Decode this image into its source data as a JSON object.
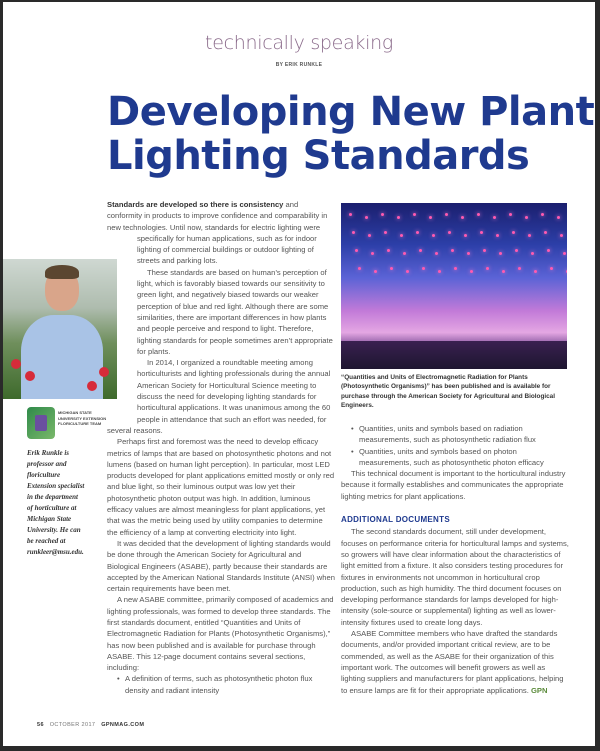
{
  "header": {
    "kicker": "technically speaking",
    "byline": "BY ERIK RUNKLE"
  },
  "title": {
    "line1": "Developing New Plant",
    "line2": "Lighting Standards"
  },
  "left_column": {
    "lead_bold": "Standards are developed so there is consistency",
    "p1": " and conformity in products to improve confidence and comparability in new technologies. Until now, standards for electric lighting were specifically for human applications, such as for indoor lighting of commercial buildings or outdoor lighting of streets and parking lots.",
    "p2": "These standards are based on human’s perception of light, which is favorably biased towards our sensitivity to green light, and negatively biased towards our weaker perception of blue and red light. Although there are some similarities, there are important differences in how plants and people perceive and respond to light. Therefore, lighting standards for people sometimes aren’t appropriate for plants.",
    "p3": "In 2014, I organized a roundtable meeting among horticulturists and lighting professionals during the annual American Society for Horticultural Science meeting to discuss the need for developing lighting standards for horticultural applications. It was unanimous among the 60 people in attendance that such an effort was needed, for several reasons.",
    "p4": "Perhaps first and foremost was the need to develop efficacy metrics of lamps that are based on photosynthetic photons and not lumens (based on human light perception). In particular, most LED products developed for plant applications emitted mostly or only red and blue light, so their luminous output was low yet their photosynthetic photon output was high. In addition, luminous efficacy values are almost meaningless for plant applications, yet that was the metric being used by utility companies to determine the efficiency of a lamp at converting electricity into light.",
    "p5": "It was decided that the development of lighting standards would be done through the American Society for Agricultural and Biological Engineers (ASABE), partly because their standards are accepted by the American National Standards Institute (ANSI) when certain requirements have been met.",
    "p6": "A new ASABE committee, primarily composed of academics and lighting professionals, was formed to develop three standards. The first standards document, entitled “Quantities and Units of Electromagnetic Radiation for Plants (Photosynthetic Organisms),” has now been published and is available for purchase through ASABE. This 12-page document contains several sections, including:",
    "bullet1": "A definition of terms, such as photosynthetic photon flux density and radiant intensity"
  },
  "photo": {
    "caption": "“Quantities and Units of Electromagnetic Radiation for Plants (Photosynthetic Organisms)” has been published and is available for purchase through the American Society for Agricultural and Biological Engineers."
  },
  "right_column": {
    "bullets": [
      "Quantities, units and symbols based on radiation measurements, such as photosynthetic radiation flux",
      "Quantities, units and symbols based on photon measurements, such as photosynthetic photon efficacy"
    ],
    "p1": "This technical document is important to the horticultural industry because it formally establishes and communicates the appropriate lighting metrics for plant applications.",
    "heading": "ADDITIONAL DOCUMENTS",
    "p2": "The second standards document, still under development, focuses on performance criteria for horticultural lamps and systems, so growers will have clear information about the characteristics of light emitted from a fixture. It also considers testing procedures for fixtures in environments not uncommon in horticultural crop production, such as high humidity. The third document focuses on developing performance standards for lamps developed for high-intensity (sole-source or supplemental) lighting as well as lower-intensity fixtures used to create long days.",
    "p3": "ASABE Committee members who have drafted the standards documents, and/or provided important critical review, are to be commended, as well as the ASABE for their organization of this important work. The outcomes will benefit growers as well as lighting suppliers and manufacturers for plant applications, helping to ensure lamps are fit for their appropriate applications.",
    "end_mark": "GPN"
  },
  "sidebar": {
    "logo_text": "MICHIGAN STATE UNIVERSITY EXTENSION FLORICULTURE TEAM",
    "bio": "Erik Runkle is professor and floriculture Extension specialist in the department of horticulture at Michigan State University. He can be reached at runkleer@msu.edu."
  },
  "footer": {
    "page": "56",
    "issue": "OCTOBER 2017",
    "site": "GPNMAG.COM"
  }
}
